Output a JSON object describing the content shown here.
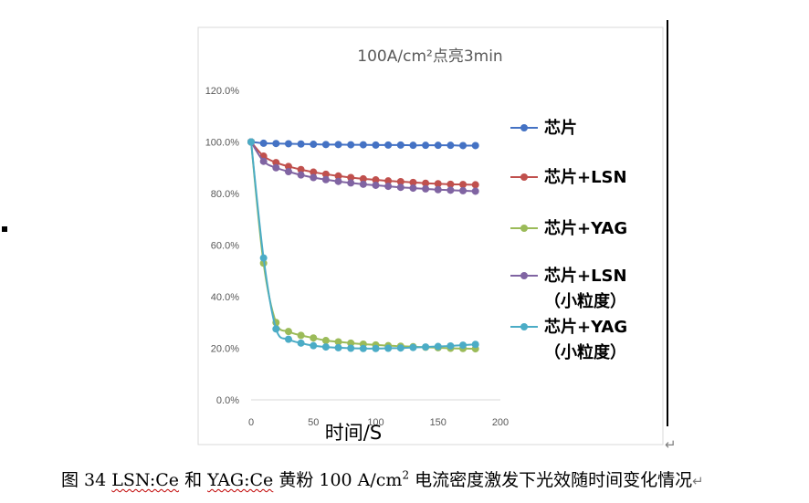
{
  "chart_data": {
    "type": "line",
    "title": "100A/cm²点亮3min",
    "xlabel": "时间/S",
    "ylabel": "",
    "x_ticks": [
      "0",
      "50",
      "100",
      "150",
      "200"
    ],
    "y_ticks": [
      "0.0%",
      "20.0%",
      "40.0%",
      "60.0%",
      "80.0%",
      "100.0%",
      "120.0%"
    ],
    "xlim": [
      0,
      200
    ],
    "ylim": [
      0,
      120
    ],
    "grid": "none",
    "legend_position": "right",
    "x": [
      0,
      10,
      20,
      30,
      40,
      50,
      60,
      70,
      80,
      90,
      100,
      110,
      120,
      130,
      140,
      150,
      160,
      170,
      180
    ],
    "series": [
      {
        "name": "芯片",
        "color": "#4472c4",
        "values": [
          100.0,
          99.5,
          99.4,
          99.3,
          99.2,
          99.1,
          99.0,
          99.0,
          98.9,
          98.9,
          98.8,
          98.8,
          98.8,
          98.7,
          98.7,
          98.7,
          98.7,
          98.6,
          98.6
        ]
      },
      {
        "name": "芯片+LSN",
        "color": "#c0504d",
        "values": [
          100.0,
          94.5,
          92.0,
          90.5,
          89.3,
          88.3,
          87.5,
          86.8,
          86.2,
          85.7,
          85.3,
          84.9,
          84.6,
          84.3,
          84.0,
          83.8,
          83.6,
          83.5,
          83.4
        ]
      },
      {
        "name": "芯片+YAG",
        "color": "#9bbb59",
        "values": [
          100.0,
          53.0,
          30.0,
          26.5,
          25.0,
          24.0,
          23.0,
          22.5,
          22.0,
          21.6,
          21.3,
          21.0,
          20.8,
          20.6,
          20.4,
          20.2,
          20.0,
          19.9,
          19.8
        ]
      },
      {
        "name": "芯片+LSN（小粒度）",
        "name_line1": "芯片+LSN",
        "name_line2": "（小粒度）",
        "color": "#8064a2",
        "values": [
          100.0,
          92.5,
          90.0,
          88.5,
          87.2,
          86.2,
          85.4,
          84.7,
          84.1,
          83.6,
          83.2,
          82.8,
          82.4,
          82.1,
          81.8,
          81.5,
          81.3,
          81.1,
          80.9
        ]
      },
      {
        "name": "芯片+YAG（小粒度）",
        "name_line1": "芯片+YAG",
        "name_line2": "（小粒度）",
        "color": "#4bacc6",
        "values": [
          100.0,
          55.0,
          27.5,
          23.5,
          22.0,
          21.0,
          20.5,
          20.2,
          20.0,
          19.9,
          19.9,
          20.0,
          20.1,
          20.3,
          20.5,
          20.7,
          20.9,
          21.2,
          21.5
        ]
      }
    ]
  },
  "caption": {
    "prefix": "图 34 ",
    "lsn": "LSN:Ce",
    "and": " 和 ",
    "yag": "YAG:Ce",
    "middle": " 黄粉 100 A/cm",
    "sup": "2",
    "rest": " 电流密度激发下光效随时间变化情况",
    "mark": "↵"
  },
  "paragraph_mark": "↵"
}
